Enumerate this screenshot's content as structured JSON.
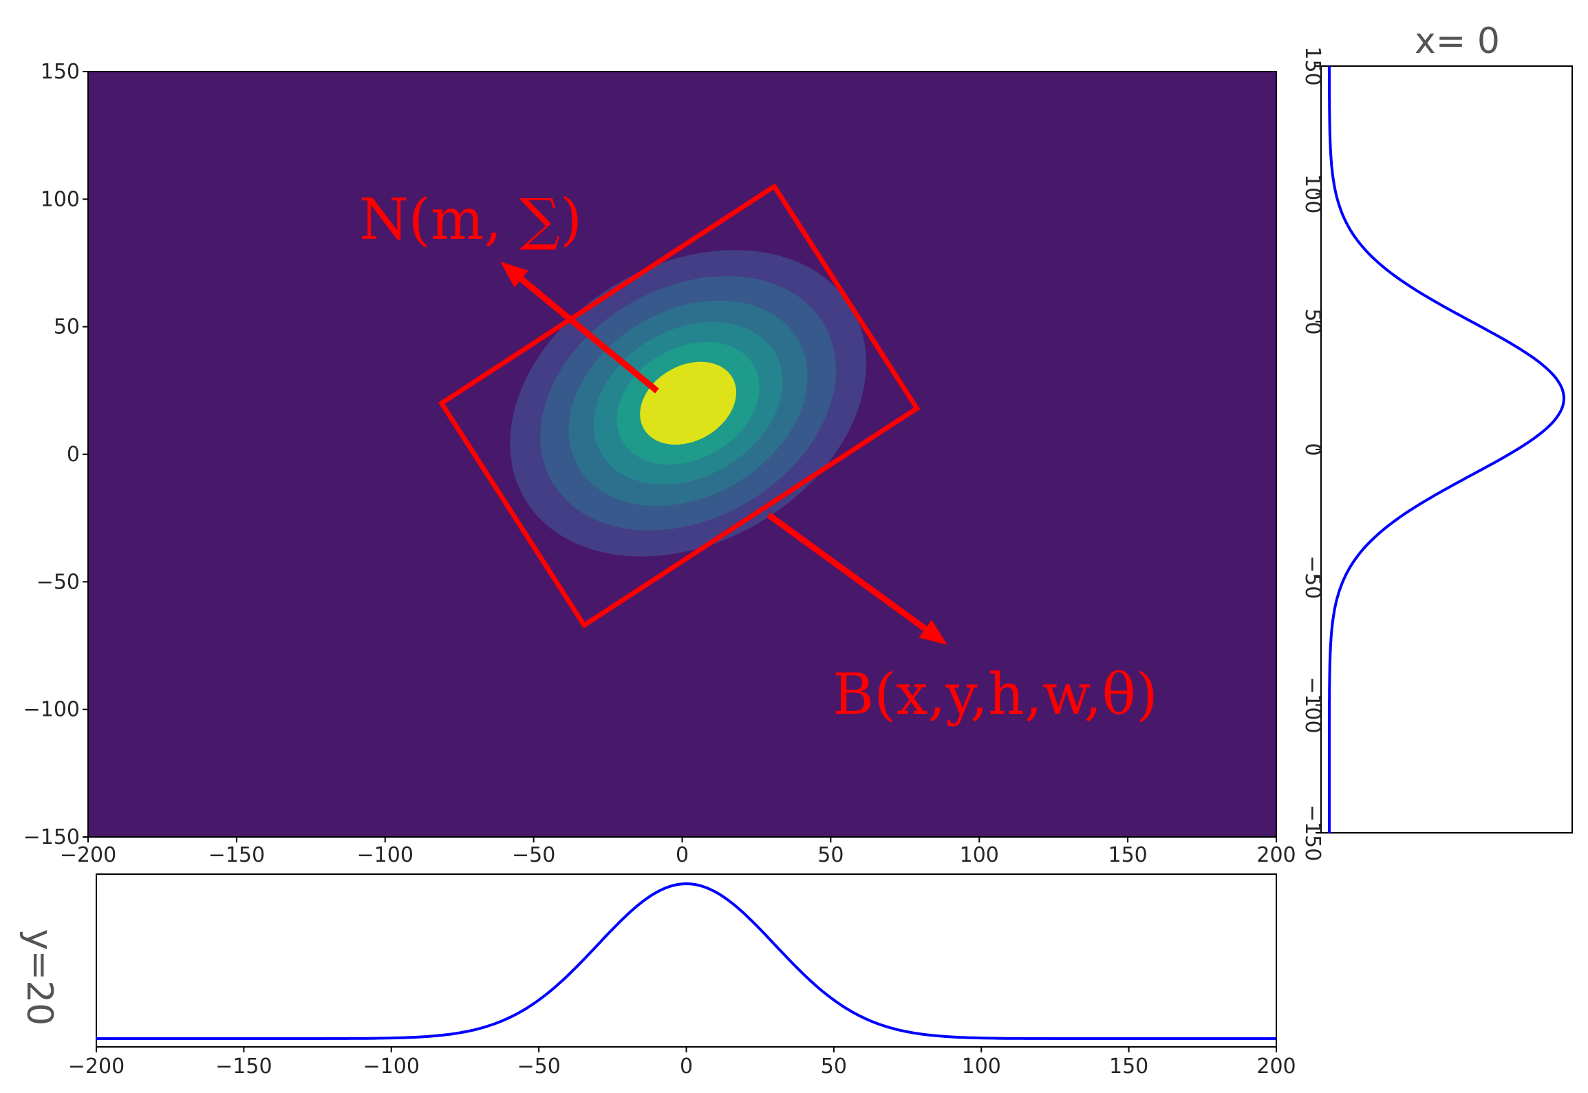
{
  "chart_data": [
    {
      "type": "heatmap",
      "panel": "main",
      "description_values": {
        "mean": [
          2,
          20
        ],
        "contour_levels": 7
      },
      "xlim": [
        -200,
        200
      ],
      "ylim": [
        -150,
        150
      ],
      "xticks": [
        "−200",
        "−150",
        "−100",
        "−50",
        "0",
        "50",
        "100",
        "150",
        "200"
      ],
      "yticks": [
        "150",
        "100",
        "50",
        "0",
        "−50",
        "−100",
        "−150"
      ],
      "colors": {
        "background": "#48186a",
        "levels": [
          "#433e85",
          "#38598c",
          "#2d708e",
          "#25858e",
          "#1e9b8a",
          "#6ccd5a",
          "#dde318"
        ]
      },
      "box_corners": [
        [
          31,
          105
        ],
        [
          79,
          18
        ],
        [
          -33,
          -67
        ],
        [
          -81,
          20
        ]
      ],
      "annotations": [
        {
          "text": "N(m, ∑)",
          "color": "#ff0000"
        },
        {
          "text": "B(x,y,h,w,θ)",
          "color": "#ff0000"
        }
      ]
    },
    {
      "type": "line",
      "panel": "right",
      "title": "x= 0",
      "axis": "y",
      "ylim": [
        -150,
        150
      ],
      "yticks": [
        "150",
        "100",
        "50",
        "0",
        "−50",
        "−100",
        "−150"
      ],
      "peak_at": 20,
      "color": "#0000ff"
    },
    {
      "type": "line",
      "panel": "bottom",
      "ylabel": "y=20",
      "xlim": [
        -200,
        200
      ],
      "xticks": [
        "−200",
        "−150",
        "−100",
        "−50",
        "0",
        "50",
        "100",
        "150",
        "200"
      ],
      "peak_at": 0,
      "color": "#0000ff"
    }
  ]
}
